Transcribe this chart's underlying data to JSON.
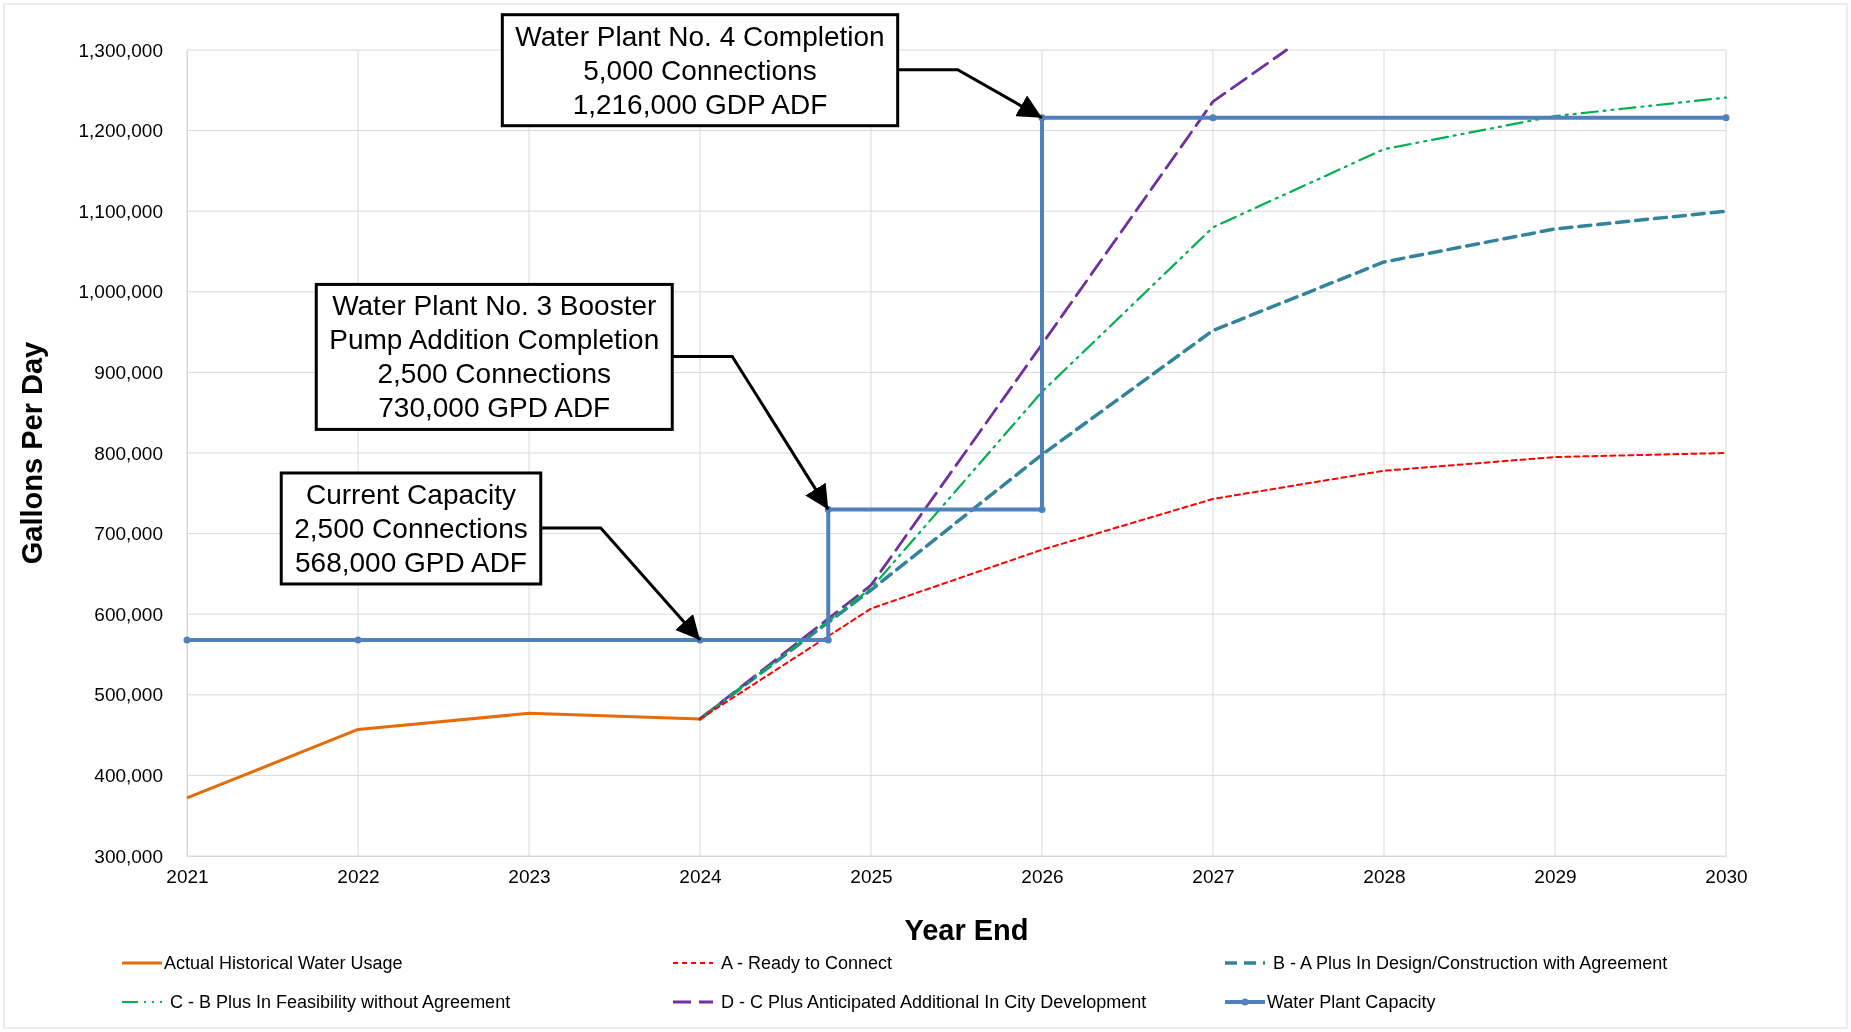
{
  "chart_data": {
    "type": "line",
    "xlabel": "Year End",
    "ylabel": "Gallons Per Day",
    "xlim": [
      2021,
      2030
    ],
    "xticks": [
      2021,
      2022,
      2023,
      2024,
      2025,
      2026,
      2027,
      2028,
      2029,
      2030
    ],
    "ylim": [
      300000,
      1300000
    ],
    "yticks": [
      {
        "value": 300000,
        "label": "300,000"
      },
      {
        "value": 400000,
        "label": "400,000"
      },
      {
        "value": 500000,
        "label": "500,000"
      },
      {
        "value": 600000,
        "label": "600,000"
      },
      {
        "value": 700000,
        "label": "700,000"
      },
      {
        "value": 800000,
        "label": "800,000"
      },
      {
        "value": 900000,
        "label": "900,000"
      },
      {
        "value": 1000000,
        "label": "1,000,000"
      },
      {
        "value": 1100000,
        "label": "1,100,000"
      },
      {
        "value": 1200000,
        "label": "1,200,000"
      },
      {
        "value": 1300000,
        "label": "1,300,000"
      }
    ],
    "grid": true,
    "legend": "bottom",
    "series": [
      {
        "name": "Actual Historical Water Usage",
        "color": "#e46c0a",
        "line_style": "solid",
        "marker": "none",
        "x": [
          2021,
          2022,
          2023,
          2024
        ],
        "values": [
          372000,
          457000,
          477000,
          470000
        ]
      },
      {
        "name": "A - Ready to Connect",
        "color": "#ff0000",
        "line_style": "dotted",
        "marker": "none",
        "x": [
          2024,
          2025,
          2026,
          2027,
          2028,
          2029,
          2030
        ],
        "values": [
          470000,
          607000,
          680000,
          743000,
          778000,
          795000,
          800000
        ]
      },
      {
        "name": "B - A Plus In Design/Construction with Agreement",
        "color": "#31849b",
        "line_style": "dashed",
        "marker": "none",
        "x": [
          2024,
          2025,
          2026,
          2027,
          2028,
          2029,
          2030
        ],
        "values": [
          470000,
          630000,
          798000,
          952000,
          1037000,
          1078000,
          1100000
        ]
      },
      {
        "name": "C - B Plus In Feasibility without Agreement",
        "color": "#00b050",
        "line_style": "dashed",
        "marker": "none",
        "x": [
          2024,
          2025,
          2026,
          2027,
          2028,
          2029,
          2030
        ],
        "values": [
          470000,
          632000,
          876000,
          1080000,
          1177000,
          1218000,
          1241000
        ]
      },
      {
        "name": "D - C Plus Anticipated Additional In City Development",
        "color": "#7030a0",
        "line_style": "dashed",
        "marker": "none",
        "x": [
          2024,
          2025,
          2026,
          2027,
          2027.43
        ],
        "values": [
          470000,
          636000,
          935000,
          1236000,
          1300000
        ]
      },
      {
        "name": "Water Plant Capacity",
        "color": "#4f81bd",
        "line_style": "solid",
        "marker": "circle",
        "x": [
          2021,
          2022,
          2024,
          2024.75,
          2024.75,
          2026,
          2026,
          2027,
          2030
        ],
        "values": [
          568000,
          568000,
          568000,
          568000,
          730000,
          730000,
          1216000,
          1216000,
          1216000
        ]
      }
    ],
    "annotations": [
      {
        "text": "Current Capacity\n2,500 Connections\n568,000 GPD ADF",
        "x": 2024,
        "y": 568000
      },
      {
        "text": "Water Plant No. 3 Booster\nPump Addition Completion\n2,500 Connections\n730,000 GPD ADF",
        "x": 2024.75,
        "y": 730000
      },
      {
        "text": "Water Plant No. 4 Completion\n5,000 Connections\n1,216,000 GDP ADF",
        "x": 2026,
        "y": 1216000
      }
    ]
  }
}
